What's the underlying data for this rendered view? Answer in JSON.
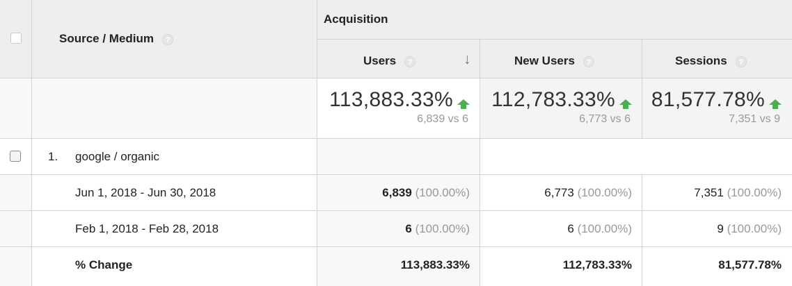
{
  "header": {
    "dimension_label": "Source / Medium",
    "group_label": "Acquisition",
    "columns": [
      {
        "label": "Users",
        "sorted": true
      },
      {
        "label": "New Users",
        "sorted": false
      },
      {
        "label": "Sessions",
        "sorted": false
      }
    ],
    "help_glyph": "?",
    "sort_glyph": "↓"
  },
  "totals": [
    {
      "value": "113,883.33%",
      "compare": "6,839 vs 6"
    },
    {
      "value": "112,783.33%",
      "compare": "6,773 vs 6"
    },
    {
      "value": "81,577.78%",
      "compare": "7,351 vs 9"
    }
  ],
  "rows": [
    {
      "index": "1.",
      "dimension": "google / organic",
      "date_rows": [
        {
          "label": "Jun 1, 2018 - Jun 30, 2018",
          "cells": [
            {
              "value": "6,839",
              "pct": "(100.00%)"
            },
            {
              "value": "6,773",
              "pct": "(100.00%)"
            },
            {
              "value": "7,351",
              "pct": "(100.00%)"
            }
          ]
        },
        {
          "label": "Feb 1, 2018 - Feb 28, 2018",
          "cells": [
            {
              "value": "6",
              "pct": "(100.00%)"
            },
            {
              "value": "6",
              "pct": "(100.00%)"
            },
            {
              "value": "9",
              "pct": "(100.00%)"
            }
          ]
        }
      ],
      "change": {
        "label": "% Change",
        "cells": [
          "113,883.33%",
          "112,783.33%",
          "81,577.78%"
        ]
      }
    }
  ],
  "colors": {
    "header_bg": "#eeeeee",
    "up_arrow": "#4caf50",
    "border": "#d3d3d3"
  }
}
